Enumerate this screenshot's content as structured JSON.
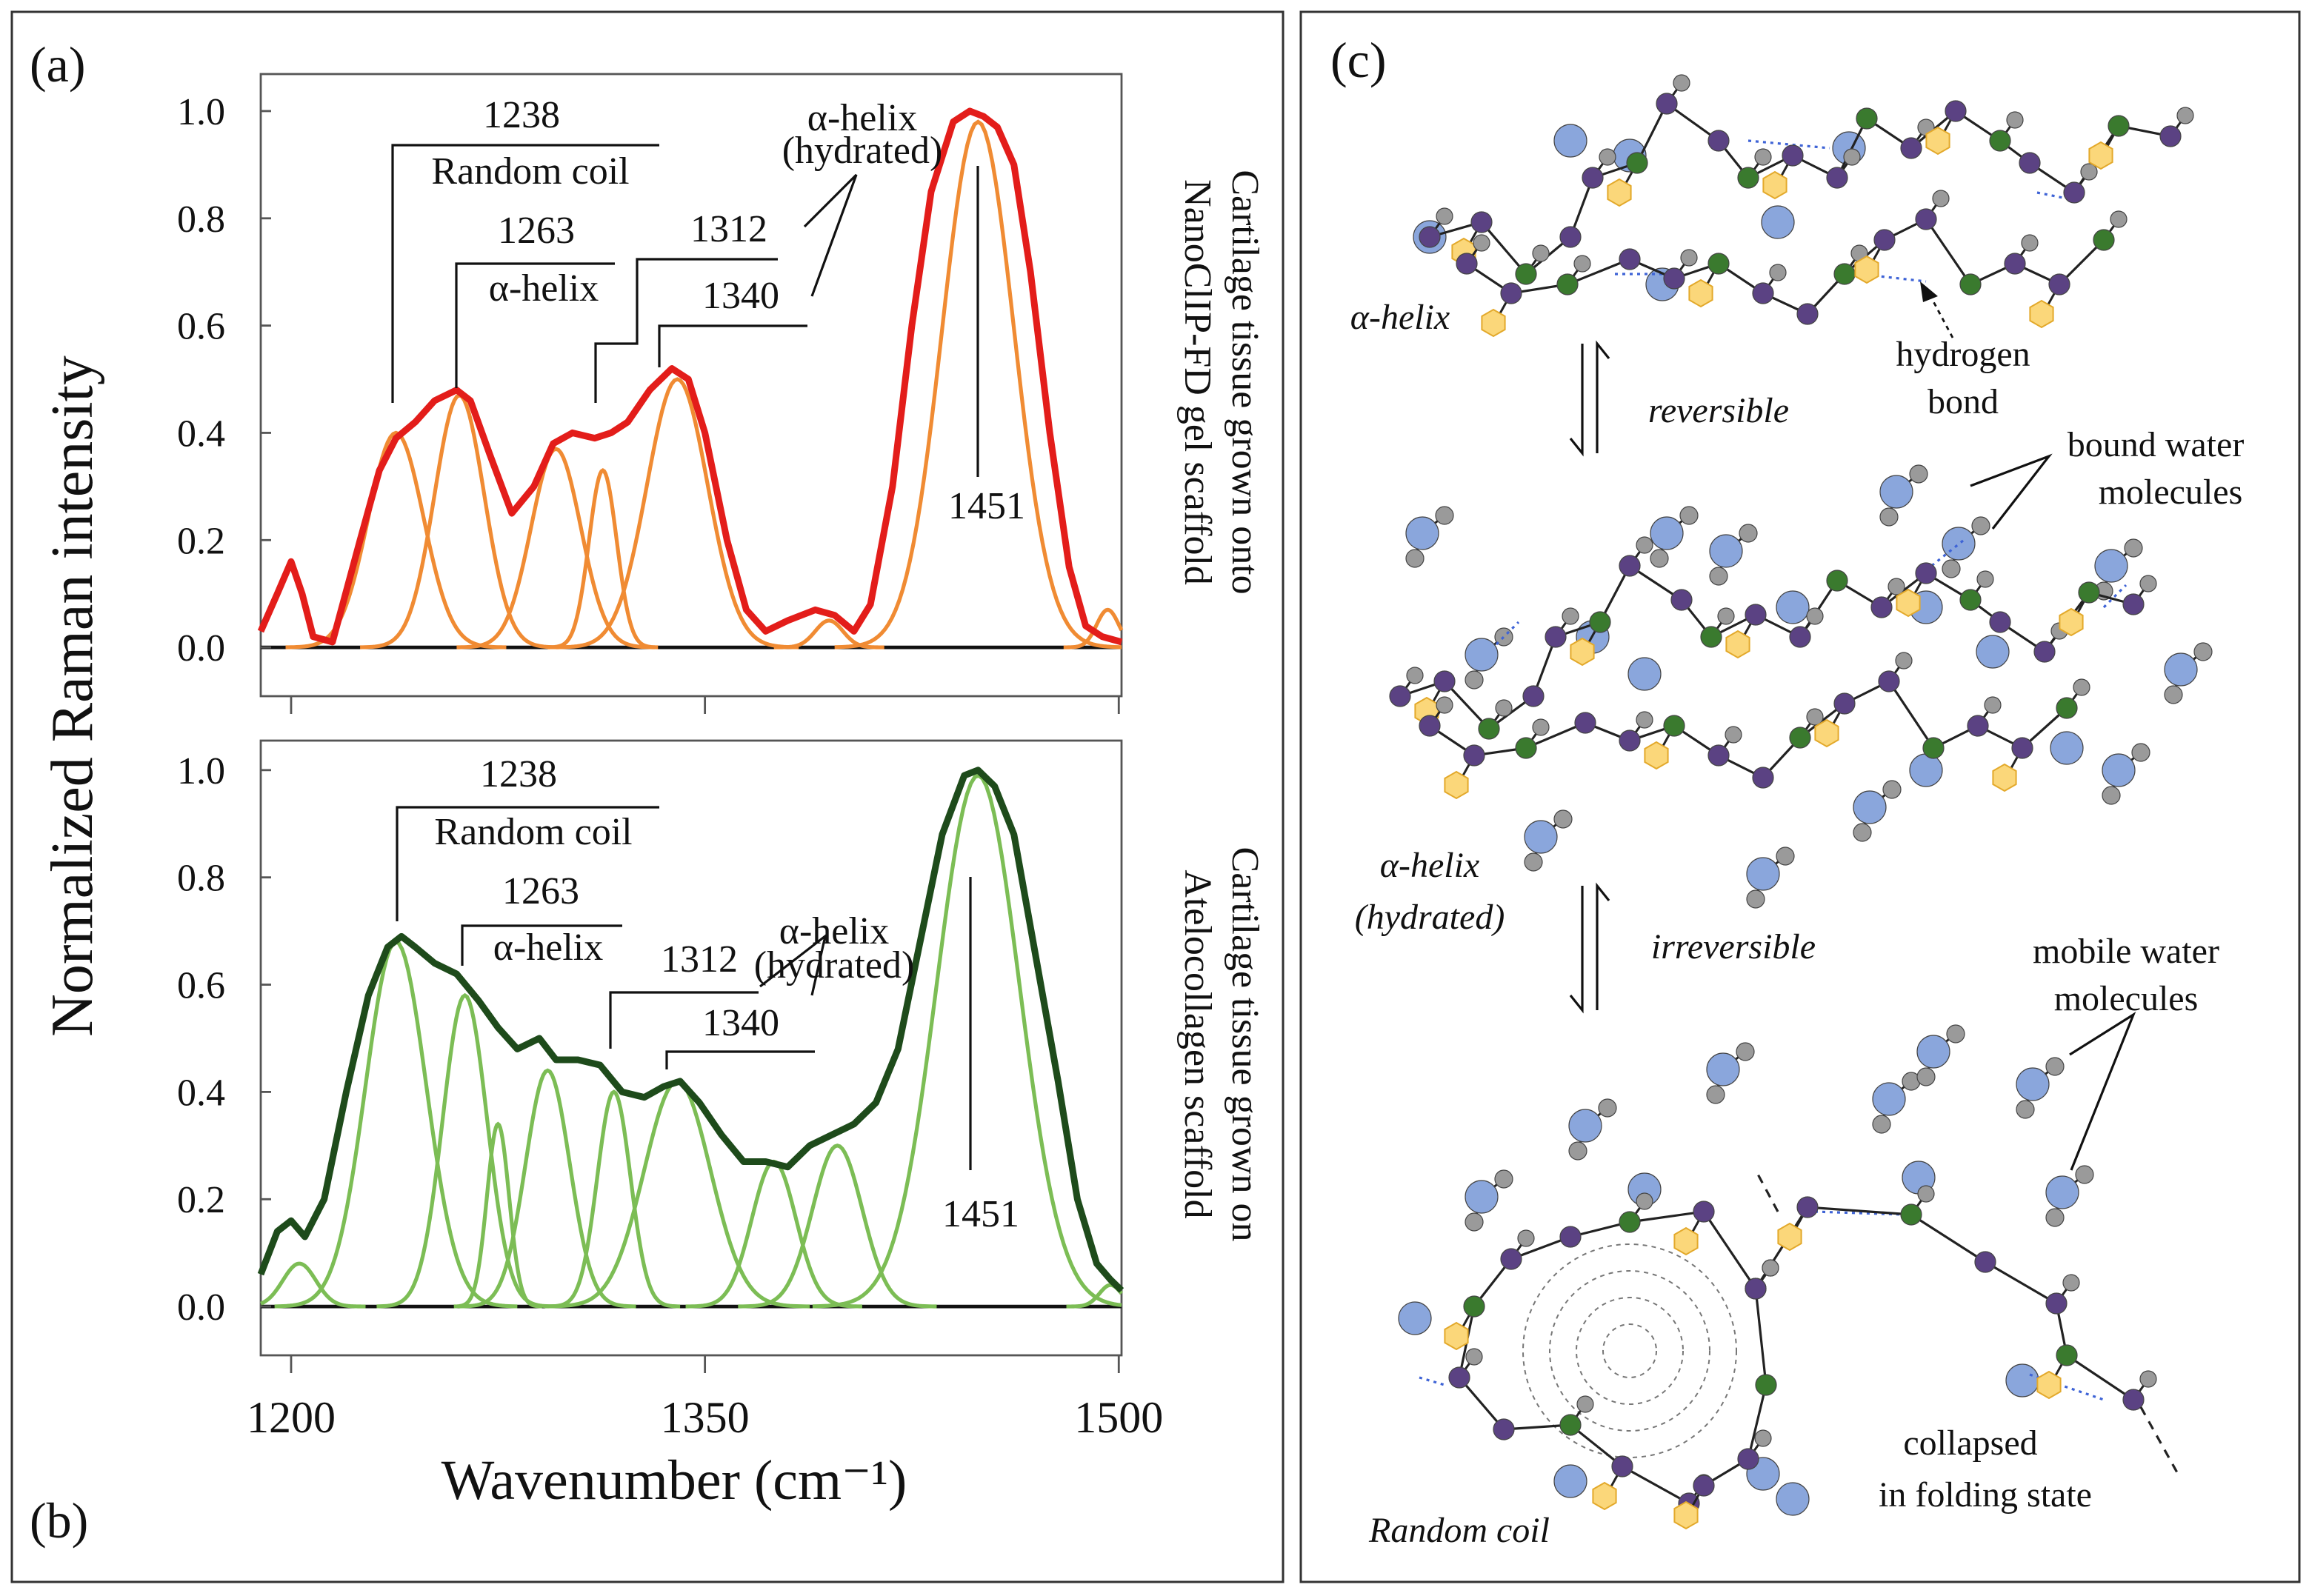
{
  "chart_data": [
    {
      "type": "line",
      "panel_label": "(a)",
      "y_label": "Normalized Raman intensity",
      "side_label": [
        "Cartilage tissue grown onto",
        "NanoClIP-FD gel scaffold"
      ],
      "xlim": [
        1189,
        1501
      ],
      "ylim": [
        -0.091,
        1.069
      ],
      "yticks": [
        {
          "value": 0,
          "label": "0.0"
        },
        0.2,
        0.4,
        0.6,
        0.8,
        {
          "value": 1,
          "label": "1.0"
        }
      ],
      "series": [
        {
          "color": "#e31d1a",
          "x": [
            1189,
            1195,
            1200,
            1204,
            1208,
            1215,
            1225,
            1232,
            1238,
            1245,
            1252,
            1260,
            1265,
            1272,
            1280,
            1288,
            1295,
            1302,
            1310,
            1316,
            1322,
            1330,
            1338,
            1344,
            1350,
            1358,
            1365,
            1372,
            1380,
            1390,
            1397,
            1404,
            1410,
            1418,
            1425,
            1432,
            1440,
            1446,
            1451,
            1456,
            1462,
            1468,
            1475,
            1482,
            1488,
            1494,
            1501
          ],
          "values": [
            0.03,
            0.1,
            0.16,
            0.1,
            0.02,
            0.01,
            0.2,
            0.33,
            0.39,
            0.42,
            0.46,
            0.48,
            0.46,
            0.36,
            0.25,
            0.3,
            0.38,
            0.4,
            0.39,
            0.4,
            0.42,
            0.48,
            0.52,
            0.5,
            0.4,
            0.2,
            0.07,
            0.03,
            0.05,
            0.07,
            0.06,
            0.03,
            0.08,
            0.3,
            0.6,
            0.85,
            0.98,
            1.0,
            0.99,
            0.97,
            0.9,
            0.7,
            0.4,
            0.15,
            0.04,
            0.02,
            0.01
          ]
        }
      ],
      "bands": {
        "color": "#f08b33",
        "centers": [
          1238,
          1261,
          1296,
          1313,
          1340,
          1395,
          1449,
          1496
        ],
        "heights": [
          0.4,
          0.47,
          0.37,
          0.33,
          0.5,
          0.05,
          0.98,
          0.07
        ],
        "widths": [
          10,
          9,
          9,
          5,
          11,
          5,
          13,
          4
        ]
      },
      "annotations": [
        "1238",
        "Random coil",
        "1263",
        "α-helix",
        "α-helix",
        "(hydrated)",
        "1312",
        "1340",
        "1451"
      ]
    },
    {
      "type": "line",
      "panel_label": "(b)",
      "x_label": "Wavenumber (cm⁻¹)",
      "side_label": [
        "Cartilage tissue grown on",
        "Atelocollagen scaffold"
      ],
      "xlim": [
        1189,
        1501
      ],
      "ylim": [
        -0.091,
        1.055
      ],
      "xticks": [
        1200,
        1350,
        1500
      ],
      "yticks": [
        {
          "value": 0,
          "label": "0.0"
        },
        0.2,
        0.4,
        0.6,
        0.8,
        {
          "value": 1,
          "label": "1.0"
        }
      ],
      "series": [
        {
          "color": "#1e4b1b",
          "x": [
            1189,
            1195,
            1200,
            1205,
            1212,
            1220,
            1228,
            1235,
            1240,
            1245,
            1252,
            1260,
            1268,
            1275,
            1282,
            1290,
            1296,
            1304,
            1312,
            1320,
            1328,
            1335,
            1341,
            1348,
            1356,
            1364,
            1372,
            1380,
            1388,
            1396,
            1404,
            1412,
            1420,
            1428,
            1436,
            1444,
            1449,
            1455,
            1462,
            1470,
            1478,
            1485,
            1492,
            1497,
            1501
          ],
          "values": [
            0.06,
            0.14,
            0.16,
            0.13,
            0.2,
            0.4,
            0.58,
            0.67,
            0.69,
            0.67,
            0.64,
            0.62,
            0.57,
            0.52,
            0.48,
            0.5,
            0.46,
            0.46,
            0.45,
            0.4,
            0.39,
            0.41,
            0.42,
            0.38,
            0.32,
            0.27,
            0.27,
            0.26,
            0.3,
            0.32,
            0.34,
            0.38,
            0.48,
            0.68,
            0.88,
            0.99,
            1.0,
            0.97,
            0.88,
            0.65,
            0.42,
            0.2,
            0.08,
            0.05,
            0.03
          ]
        }
      ],
      "bands": {
        "color": "#7cbd55",
        "centers": [
          1203,
          1238,
          1263,
          1275,
          1293,
          1317,
          1340,
          1375,
          1398,
          1449,
          1497
        ],
        "heights": [
          0.08,
          0.68,
          0.58,
          0.34,
          0.44,
          0.4,
          0.42,
          0.27,
          0.3,
          0.99,
          0.04
        ],
        "widths": [
          6,
          11,
          8,
          4,
          8,
          6,
          12,
          8,
          9,
          15,
          4
        ]
      },
      "annotations": [
        "1238",
        "Random coil",
        "1263",
        "α-helix",
        "α-helix",
        "(hydrated)",
        "1312",
        "1340",
        "1451"
      ]
    }
  ],
  "diagram": {
    "panel_label": "(c)",
    "labels": {
      "helix": "α-helix",
      "reversible": "reversible",
      "hydrogen_bond": [
        "hydrogen",
        "bond"
      ],
      "bound_water": [
        "bound water",
        "molecules"
      ],
      "hydrated": [
        "α-helix",
        "(hydrated)"
      ],
      "irreversible": "irreversible",
      "mobile_water": [
        "mobile water",
        "molecules"
      ],
      "collapsed": [
        "collapsed",
        "in folding state"
      ],
      "random_coil": "Random coil"
    }
  }
}
